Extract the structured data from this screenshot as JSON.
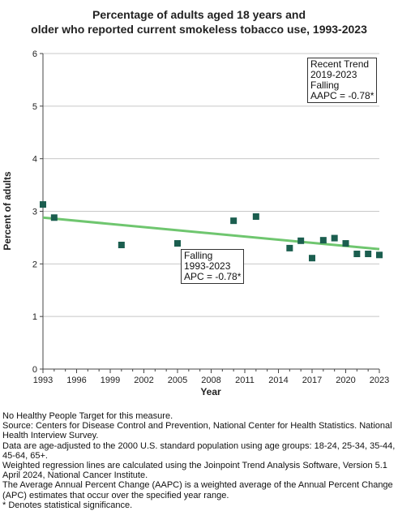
{
  "chart_data": {
    "type": "scatter",
    "title_lines": [
      "Percentage of adults aged 18 years and",
      "older who reported current smokeless tobacco use, 1993-2023"
    ],
    "xlabel": "Year",
    "ylabel": "Percent of adults",
    "xlim": [
      1993,
      2023
    ],
    "ylim": [
      0,
      6
    ],
    "x_ticks": [
      1993,
      1996,
      1999,
      2002,
      2005,
      2008,
      2011,
      2014,
      2017,
      2020,
      2023
    ],
    "y_ticks": [
      0,
      1,
      2,
      3,
      4,
      5,
      6
    ],
    "grid": "horizontal",
    "points": [
      {
        "x": 1993,
        "y": 3.13
      },
      {
        "x": 1994,
        "y": 2.88
      },
      {
        "x": 2000,
        "y": 2.36
      },
      {
        "x": 2005,
        "y": 2.39
      },
      {
        "x": 2010,
        "y": 2.82
      },
      {
        "x": 2012,
        "y": 2.9
      },
      {
        "x": 2015,
        "y": 2.3
      },
      {
        "x": 2016,
        "y": 2.44
      },
      {
        "x": 2017,
        "y": 2.11
      },
      {
        "x": 2018,
        "y": 2.45
      },
      {
        "x": 2019,
        "y": 2.49
      },
      {
        "x": 2020,
        "y": 2.39
      },
      {
        "x": 2021,
        "y": 2.19
      },
      {
        "x": 2022,
        "y": 2.19
      },
      {
        "x": 2023,
        "y": 2.17
      }
    ],
    "trend_line": {
      "x": [
        1993,
        2023
      ],
      "y": [
        2.88,
        2.28
      ]
    },
    "marker_color": "#1b5e4f",
    "trend_color": "#6fc66f",
    "annotations": {
      "recent": [
        "Recent Trend",
        "2019-2023",
        "Falling",
        "AAPC = -0.78*"
      ],
      "overall": [
        "Falling",
        "1993-2023",
        "APC = -0.78*"
      ]
    }
  },
  "notes": [
    "No Healthy People Target for this measure.",
    "Source: Centers for Disease Control and Prevention, National Center for Health Statistics. National Health Interview Survey.",
    "Data are age-adjusted to the 2000 U.S. standard population using age groups: 18-24, 25-34, 35-44, 45-64, 65+.",
    "Weighted regression lines are calculated using the Joinpoint Trend Analysis Software, Version 5.1 April 2024, National Cancer Institute.",
    "The Average Annual Percent Change (AAPC) is a weighted average of the Annual Percent Change (APC) estimates that occur over the specified year range.",
    "* Denotes statistical significance."
  ]
}
